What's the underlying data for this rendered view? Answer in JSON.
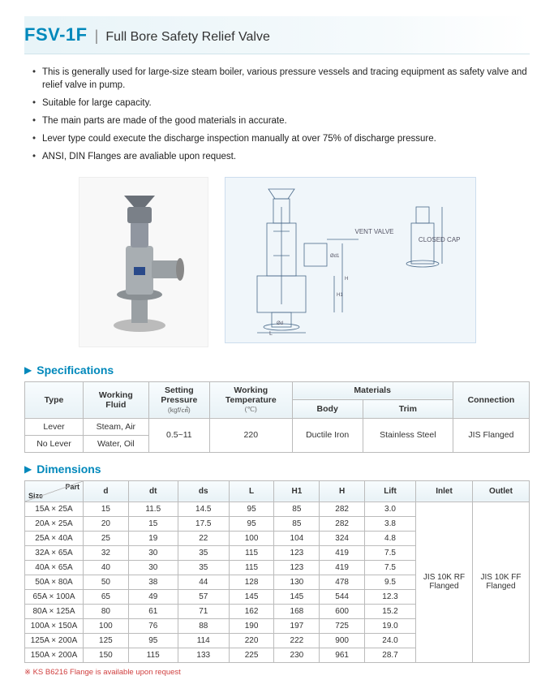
{
  "title": {
    "code": "FSV-1F",
    "name": "Full Bore Safety Relief Valve"
  },
  "bullets": [
    "This is generally used for large-size steam boiler, various pressure vessels and tracing equipment as safety valve and relief valve in pump.",
    "Suitable for large capacity.",
    "The main parts are made of the good materials in accurate.",
    "Lever type could execute the discharge inspection manually at over 75% of discharge pressure.",
    "ANSI, DIN Flanges are avaliable upon request."
  ],
  "diagram_labels": {
    "vent": "VENT VALVE",
    "cap": "CLOSED CAP"
  },
  "sections": {
    "specs": "Specifications",
    "dims": "Dimensions"
  },
  "spec_headers": {
    "type": "Type",
    "fluid": "Working\nFluid",
    "pressure": "Setting\nPressure",
    "pressure_unit": "(kgf/㎠)",
    "temp": "Working\nTemperature",
    "temp_unit": "(℃)",
    "materials": "Materials",
    "body": "Body",
    "trim": "Trim",
    "conn": "Connection"
  },
  "spec_rows": [
    {
      "type": "Lever",
      "fluid": "Steam, Air"
    },
    {
      "type": "No Lever",
      "fluid": "Water, Oil"
    }
  ],
  "spec_merged": {
    "pressure": "0.5~11",
    "temp": "220",
    "body": "Ductile Iron",
    "trim": "Stainless Steel",
    "conn": "JIS Flanged"
  },
  "dim_headers": {
    "size": "Size",
    "part": "Part",
    "d": "d",
    "dt": "dt",
    "ds": "ds",
    "L": "L",
    "H1": "H1",
    "H": "H",
    "lift": "Lift",
    "inlet": "Inlet",
    "outlet": "Outlet"
  },
  "dim_rows": [
    {
      "size": "15A × 25A",
      "d": "15",
      "dt": "11.5",
      "ds": "14.5",
      "L": "95",
      "H1": "85",
      "H": "282",
      "lift": "3.0"
    },
    {
      "size": "20A × 25A",
      "d": "20",
      "dt": "15",
      "ds": "17.5",
      "L": "95",
      "H1": "85",
      "H": "282",
      "lift": "3.8"
    },
    {
      "size": "25A × 40A",
      "d": "25",
      "dt": "19",
      "ds": "22",
      "L": "100",
      "H1": "104",
      "H": "324",
      "lift": "4.8"
    },
    {
      "size": "32A × 65A",
      "d": "32",
      "dt": "30",
      "ds": "35",
      "L": "115",
      "H1": "123",
      "H": "419",
      "lift": "7.5"
    },
    {
      "size": "40A × 65A",
      "d": "40",
      "dt": "30",
      "ds": "35",
      "L": "115",
      "H1": "123",
      "H": "419",
      "lift": "7.5"
    },
    {
      "size": "50A × 80A",
      "d": "50",
      "dt": "38",
      "ds": "44",
      "L": "128",
      "H1": "130",
      "H": "478",
      "lift": "9.5"
    },
    {
      "size": "65A × 100A",
      "d": "65",
      "dt": "49",
      "ds": "57",
      "L": "145",
      "H1": "145",
      "H": "544",
      "lift": "12.3"
    },
    {
      "size": "80A × 125A",
      "d": "80",
      "dt": "61",
      "ds": "71",
      "L": "162",
      "H1": "168",
      "H": "600",
      "lift": "15.2"
    },
    {
      "size": "100A × 150A",
      "d": "100",
      "dt": "76",
      "ds": "88",
      "L": "190",
      "H1": "197",
      "H": "725",
      "lift": "19.0"
    },
    {
      "size": "125A × 200A",
      "d": "125",
      "dt": "95",
      "ds": "114",
      "L": "220",
      "H1": "222",
      "H": "900",
      "lift": "24.0"
    },
    {
      "size": "150A × 200A",
      "d": "150",
      "dt": "115",
      "ds": "133",
      "L": "225",
      "H1": "230",
      "H": "961",
      "lift": "28.7"
    }
  ],
  "dim_merged": {
    "inlet": "JIS 10K RF\nFlanged",
    "outlet": "JIS 10K FF\nFlanged"
  },
  "footnote": "※ KS B6216 Flange is available upon request"
}
